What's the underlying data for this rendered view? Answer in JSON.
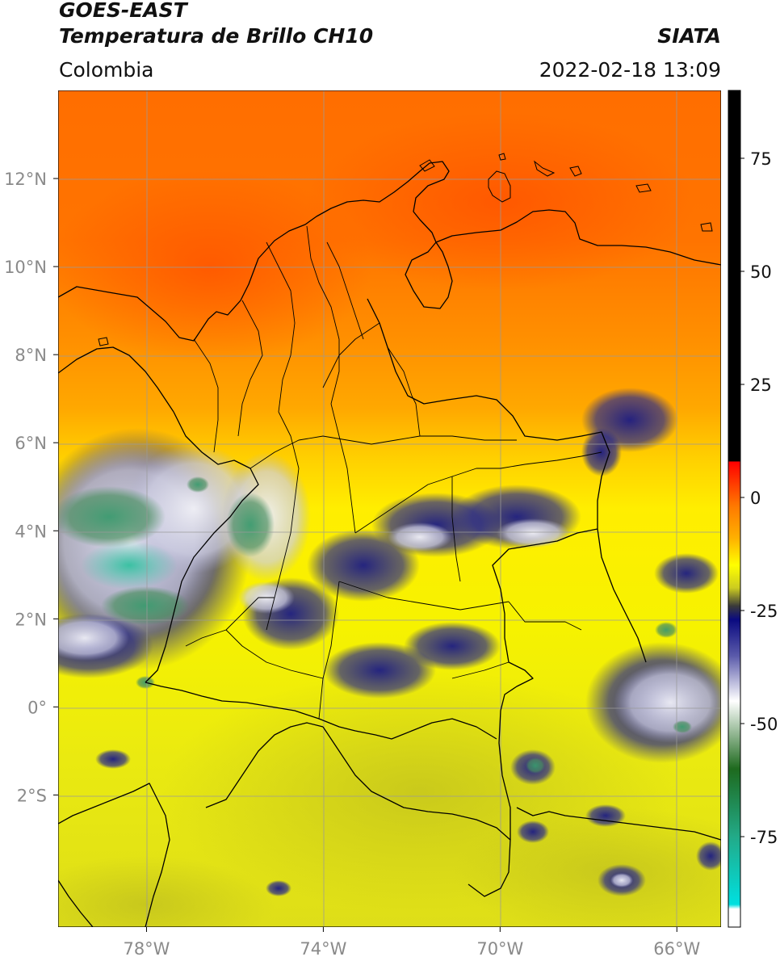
{
  "header": {
    "satellite": "GOES-EAST",
    "product": "Temperatura de Brillo CH10",
    "region": "Colombia",
    "agency": "SIATA",
    "datetime": "2022-02-18 13:09"
  },
  "map": {
    "lon_range": [
      -80.0,
      -65.0
    ],
    "lat_range": [
      -5.0,
      14.0
    ],
    "grid": true,
    "x_ticks": [
      {
        "value": -78,
        "label": "78°W"
      },
      {
        "value": -74,
        "label": "74°W"
      },
      {
        "value": -70,
        "label": "70°W"
      },
      {
        "value": -66,
        "label": "66°W"
      }
    ],
    "y_ticks": [
      {
        "value": 12,
        "label": "12°N"
      },
      {
        "value": 10,
        "label": "10°N"
      },
      {
        "value": 8,
        "label": "8°N"
      },
      {
        "value": 6,
        "label": "6°N"
      },
      {
        "value": 4,
        "label": "4°N"
      },
      {
        "value": 2,
        "label": "2°N"
      },
      {
        "value": 0,
        "label": "0°"
      },
      {
        "value": -2,
        "label": "2°S"
      }
    ]
  },
  "colorbar": {
    "range": [
      -95,
      90
    ],
    "ticks": [
      {
        "value": 75,
        "label": "75"
      },
      {
        "value": 50,
        "label": "50"
      },
      {
        "value": 25,
        "label": "25"
      },
      {
        "value": 0,
        "label": "0"
      },
      {
        "value": -25,
        "label": "-25"
      },
      {
        "value": -50,
        "label": "-50"
      },
      {
        "value": -75,
        "label": "-75"
      }
    ],
    "stops": [
      {
        "value": 90,
        "color": "#000000"
      },
      {
        "value": 8,
        "color": "#000000"
      },
      {
        "value": 7.9,
        "color": "#ff0000"
      },
      {
        "value": -2,
        "color": "#ff7a00"
      },
      {
        "value": -9,
        "color": "#ffb000"
      },
      {
        "value": -15,
        "color": "#ffff00"
      },
      {
        "value": -20,
        "color": "#cccc20"
      },
      {
        "value": -24,
        "color": "#3a3a3a"
      },
      {
        "value": -27,
        "color": "#0a0a80"
      },
      {
        "value": -35,
        "color": "#5a5aaa"
      },
      {
        "value": -45,
        "color": "#ffffff"
      },
      {
        "value": -60,
        "color": "#1e6a1e"
      },
      {
        "value": -75,
        "color": "#22aa88"
      },
      {
        "value": -90,
        "color": "#00e0e0"
      },
      {
        "value": -91,
        "color": "#ffffff"
      },
      {
        "value": -95,
        "color": "#ffffff"
      }
    ]
  },
  "colors": {
    "warm_red": "#ff5a00",
    "orange": "#ff9a00",
    "yellow": "#ffff00",
    "olive": "#cccc22",
    "cloud_blue": "#14147a",
    "cloud_white": "#e8e8f2",
    "cloud_green": "#3e8a5a",
    "cloud_teal": "#33b598",
    "border": "#000000",
    "gridline": "#9a9a9a"
  }
}
